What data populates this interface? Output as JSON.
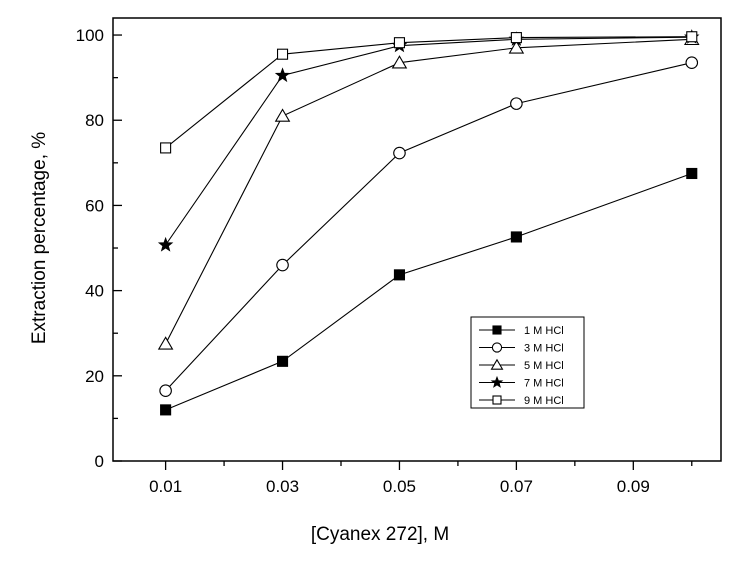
{
  "chart_data": {
    "type": "line",
    "title": "",
    "xlabel": "[Cyanex 272], M",
    "ylabel": "Extraction percentage, %",
    "xlim": [
      0.001,
      0.105
    ],
    "ylim": [
      0,
      104
    ],
    "x_ticks": [
      0.01,
      0.03,
      0.05,
      0.07,
      0.09
    ],
    "x_tick_labels": [
      "0.01",
      "0.03",
      "0.05",
      "0.07",
      "0.09"
    ],
    "y_ticks": [
      0,
      20,
      40,
      60,
      80,
      100
    ],
    "y_tick_labels": [
      "0",
      "20",
      "40",
      "60",
      "80",
      "100"
    ],
    "grid": false,
    "legend_position": "bottom-right",
    "x": [
      0.01,
      0.03,
      0.05,
      0.07,
      0.1
    ],
    "series": [
      {
        "name": "1 M HCl",
        "marker": "filled-square",
        "values": [
          12.0,
          23.4,
          43.7,
          52.6,
          67.5
        ]
      },
      {
        "name": "3 M HCl",
        "marker": "open-circle",
        "values": [
          16.5,
          46.0,
          72.3,
          83.9,
          93.5
        ]
      },
      {
        "name": "5 M HCl",
        "marker": "open-triangle",
        "values": [
          27.5,
          81.0,
          93.5,
          97.0,
          99.0
        ]
      },
      {
        "name": "7 M HCl",
        "marker": "filled-star",
        "values": [
          50.7,
          90.5,
          97.5,
          99.0,
          99.5
        ]
      },
      {
        "name": "9 M HCl",
        "marker": "open-square",
        "values": [
          73.5,
          95.5,
          98.2,
          99.4,
          99.6
        ]
      }
    ]
  }
}
